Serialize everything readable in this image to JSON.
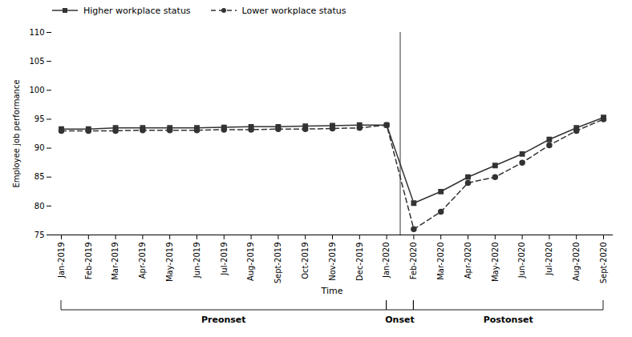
{
  "chart_data": {
    "type": "line",
    "categories": [
      "Jan-2019",
      "Feb-2019",
      "Mar-2019",
      "Apr-2019",
      "May-2019",
      "Jun-2019",
      "Jul-2019",
      "Aug-2019",
      "Sept-2019",
      "Oct-2019",
      "Nov-2019",
      "Dec-2019",
      "Jan-2020",
      "Feb-2020",
      "Mar-2020",
      "Apr-2020",
      "May-2020",
      "Jun-2020",
      "Jul-2020",
      "Aug-2020",
      "Sept-2020"
    ],
    "series": [
      {
        "name": "Higher workplace status",
        "color": "#333333",
        "marker": "square",
        "line_style": "solid",
        "values": [
          93.3,
          93.3,
          93.5,
          93.5,
          93.5,
          93.5,
          93.6,
          93.7,
          93.7,
          93.8,
          93.9,
          94.0,
          94.0,
          80.5,
          82.5,
          85.0,
          87.0,
          89.0,
          91.5,
          93.5,
          95.3
        ]
      },
      {
        "name": "Lower workplace status",
        "color": "#333333",
        "marker": "circle",
        "line_style": "dashed",
        "values": [
          93.0,
          93.0,
          93.0,
          93.1,
          93.1,
          93.1,
          93.2,
          93.2,
          93.3,
          93.3,
          93.4,
          93.5,
          94.0,
          76.0,
          79.0,
          84.0,
          85.0,
          87.5,
          90.5,
          93.0,
          95.0
        ]
      }
    ],
    "ylabel": "Employee job performance",
    "xlabel": "Time",
    "ylim": [
      75,
      110
    ],
    "yticks": [
      75,
      80,
      85,
      90,
      95,
      100,
      105,
      110
    ],
    "grid": false,
    "vline_x": 12.5,
    "phases": [
      {
        "label": "Preonset",
        "range": [
          0,
          12
        ]
      },
      {
        "label": "Onset",
        "range": [
          12,
          13
        ]
      },
      {
        "label": "Postonset",
        "range": [
          13,
          20
        ]
      }
    ]
  }
}
